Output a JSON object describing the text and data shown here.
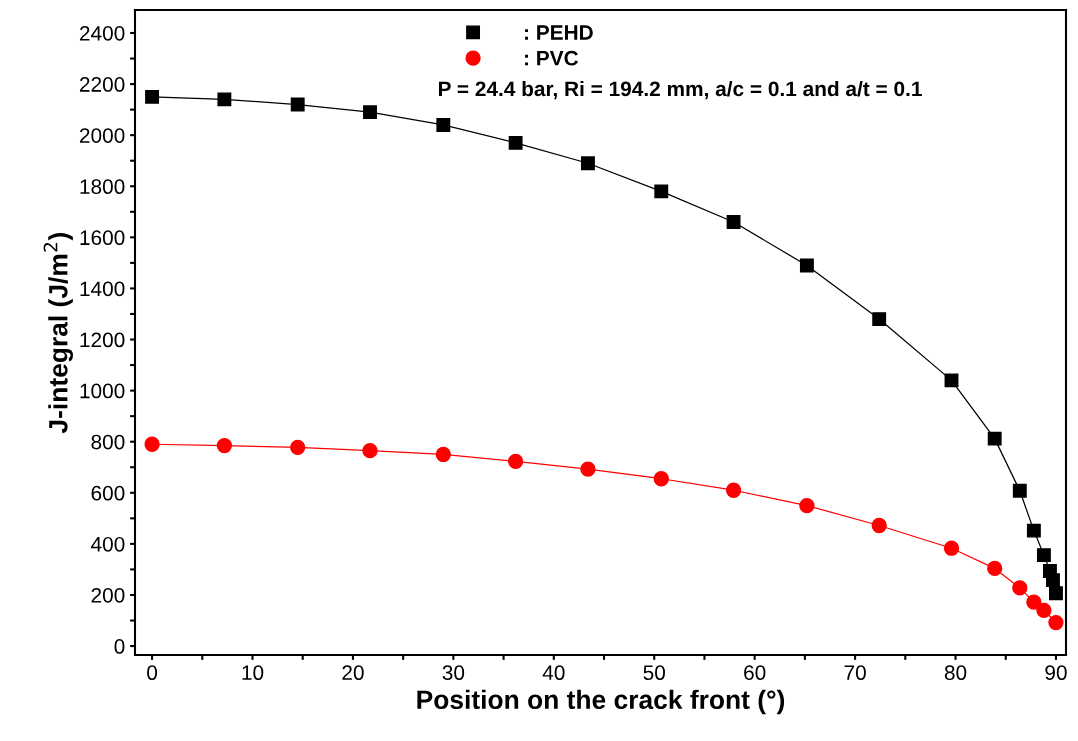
{
  "chart_data": {
    "type": "line",
    "xlabel": "Position on the crack front (°)",
    "ylabel": "J-integral (J/m$^{2}$)",
    "annotations": [
      "P = 24.4 bar, Ri = 194.2 mm, a/c = 0.1 and a/t = 0.1"
    ],
    "x": [
      0,
      7.2,
      14.5,
      21.7,
      29,
      36.2,
      43.4,
      50.7,
      57.9,
      65.2,
      72.4,
      79.6,
      83.9,
      86.4,
      87.8,
      88.8,
      89.4,
      89.7,
      89.9,
      90
    ],
    "series": [
      {
        "name": ": PEHD",
        "color": "#000000",
        "marker": "square",
        "values": [
          2150,
          2140,
          2120,
          2090,
          2040,
          1970,
          1890,
          1780,
          1660,
          1490,
          1280,
          1040,
          812,
          608,
          452,
          356,
          294,
          258,
          null,
          207
        ]
      },
      {
        "name": ": PVC",
        "color": "#ff0000",
        "marker": "circle",
        "values": [
          790,
          785,
          778,
          765,
          750,
          723,
          693,
          655,
          610,
          550,
          472,
          383,
          304,
          228,
          172,
          140,
          null,
          null,
          null,
          92
        ]
      }
    ],
    "xlim": [
      -1.7,
      91
    ],
    "ylim": [
      -35,
      2490
    ],
    "xticks": [
      0,
      {
        "value": 5,
        "label": null
      },
      10,
      {
        "value": 15,
        "label": null
      },
      20,
      {
        "value": 25,
        "label": null
      },
      30,
      {
        "value": 35,
        "label": null
      },
      40,
      {
        "value": 45,
        "label": null
      },
      50,
      {
        "value": 55,
        "label": null
      },
      60,
      {
        "value": 65,
        "label": null
      },
      70,
      {
        "value": 75,
        "label": null
      },
      80,
      {
        "value": 85,
        "label": null
      },
      90
    ],
    "yticks": [
      0,
      {
        "value": 100,
        "label": null
      },
      200,
      {
        "value": 300,
        "label": null
      },
      400,
      {
        "value": 500,
        "label": null
      },
      600,
      {
        "value": 700,
        "label": null
      },
      800,
      {
        "value": 900,
        "label": null
      },
      1000,
      {
        "value": 1100,
        "label": null
      },
      1200,
      {
        "value": 1300,
        "label": null
      },
      1400,
      {
        "value": 1500,
        "label": null
      },
      1600,
      {
        "value": 1700,
        "label": null
      },
      1800,
      {
        "value": 1900,
        "label": null
      },
      2000,
      {
        "value": 2100,
        "label": null
      },
      2200,
      {
        "value": 2300,
        "label": null
      },
      2400
    ],
    "grid": false,
    "legend": "top",
    "line_style": "solid"
  }
}
